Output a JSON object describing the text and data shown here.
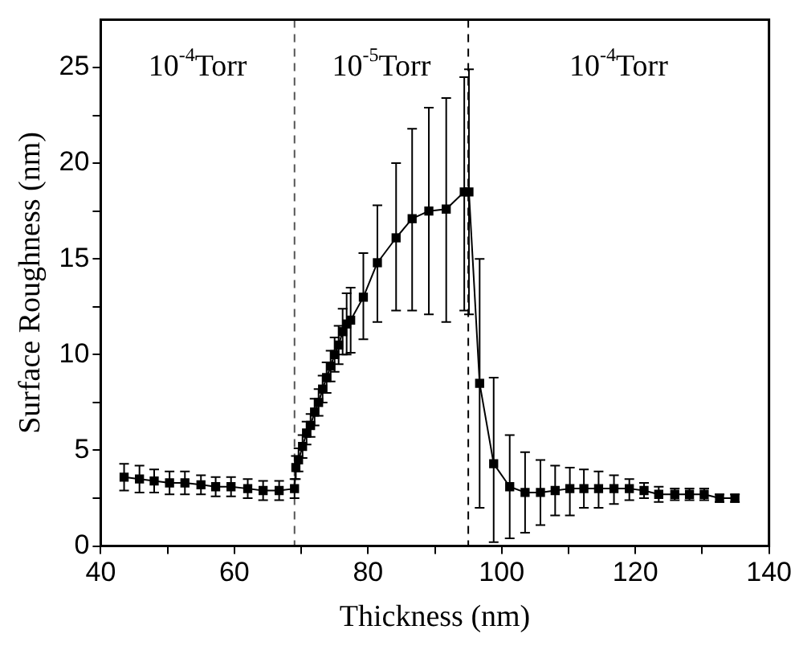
{
  "chart_data": {
    "type": "line",
    "xlabel": "Thickness (nm)",
    "ylabel": "Surface Roughness (nm)",
    "xlim": [
      40,
      140
    ],
    "ylim": [
      0,
      27.5
    ],
    "xticks": [
      40,
      {
        "value": 50,
        "label": null
      },
      60,
      {
        "value": 70,
        "label": null
      },
      80,
      {
        "value": 90,
        "label": null
      },
      100,
      {
        "value": 110,
        "label": null
      },
      120,
      {
        "value": 130,
        "label": null
      },
      140
    ],
    "yticks": [
      0,
      {
        "value": 2.5,
        "label": null
      },
      5,
      {
        "value": 7.5,
        "label": null
      },
      10,
      {
        "value": 12.5,
        "label": null
      },
      15,
      {
        "value": 17.5,
        "label": null
      },
      20,
      {
        "value": 22.5,
        "label": null
      },
      25
    ],
    "grid": false,
    "legend": false,
    "marker": "square",
    "line_style": "solid",
    "series": [
      {
        "color": "#000000",
        "x": [
          43.5,
          45.8,
          48,
          50.3,
          52.6,
          55,
          57.2,
          59.5,
          62,
          64.3,
          66.7,
          69,
          69.2,
          69.6,
          70.2,
          70.8,
          71.4,
          72,
          72.6,
          73.2,
          73.8,
          74.4,
          75,
          75.6,
          76.2,
          76.8,
          77.4,
          79.3,
          81.4,
          84.2,
          86.6,
          89.1,
          91.7,
          94.4,
          95.1,
          96.7,
          98.8,
          101.2,
          103.5,
          105.8,
          108,
          110.2,
          112.3,
          114.5,
          116.8,
          119.1,
          121.3,
          123.5,
          125.9,
          128.1,
          130.3,
          132.6,
          134.9
        ],
        "values": [
          3.6,
          3.5,
          3.4,
          3.3,
          3.3,
          3.2,
          3.1,
          3.1,
          3.0,
          2.9,
          2.9,
          3.0,
          4.1,
          4.5,
          5.2,
          5.9,
          6.3,
          7.0,
          7.5,
          8.2,
          8.8,
          9.4,
          10.0,
          10.5,
          11.2,
          11.6,
          11.8,
          13.0,
          14.8,
          16.1,
          17.1,
          17.5,
          17.6,
          18.5,
          18.5,
          8.5,
          4.3,
          3.1,
          2.8,
          2.8,
          2.9,
          3.0,
          3.0,
          3.0,
          3.0,
          3.0,
          2.9,
          2.7,
          2.7,
          2.7,
          2.7,
          2.5,
          2.5
        ],
        "errors": [
          0.7,
          0.7,
          0.6,
          0.6,
          0.6,
          0.5,
          0.5,
          0.5,
          0.5,
          0.5,
          0.5,
          0.5,
          0.6,
          0.6,
          0.6,
          0.6,
          0.6,
          0.7,
          0.7,
          0.7,
          0.8,
          0.8,
          0.9,
          1.0,
          1.2,
          1.6,
          1.7,
          [
            10.8,
            15.3
          ],
          [
            11.7,
            17.8
          ],
          [
            12.3,
            20.0
          ],
          [
            12.3,
            21.8
          ],
          [
            12.1,
            22.9
          ],
          [
            11.7,
            23.4
          ],
          [
            12.3,
            24.5
          ],
          [
            12.1,
            24.9
          ],
          [
            2.0,
            15.0
          ],
          [
            0.2,
            8.8
          ],
          [
            0.4,
            5.8
          ],
          [
            0.7,
            4.9
          ],
          [
            1.1,
            4.5
          ],
          [
            1.6,
            4.2
          ],
          [
            1.6,
            4.1
          ],
          [
            2.0,
            4.0
          ],
          [
            2.0,
            3.9
          ],
          [
            2.2,
            3.7
          ],
          [
            2.4,
            3.5
          ],
          0.4,
          0.4,
          0.3,
          0.3,
          0.3,
          0.2,
          0.2
        ]
      }
    ],
    "ref_lines": [
      {
        "axis": "x",
        "value": 69,
        "line_style": "dashed",
        "color": "#555555"
      },
      {
        "axis": "x",
        "value": 95,
        "line_style": "dashed",
        "color": "#000000"
      }
    ],
    "annotations": [
      "10$^{-4}$Torr",
      "10$^{-5}$Torr",
      "10$^{-4}$Torr"
    ]
  }
}
